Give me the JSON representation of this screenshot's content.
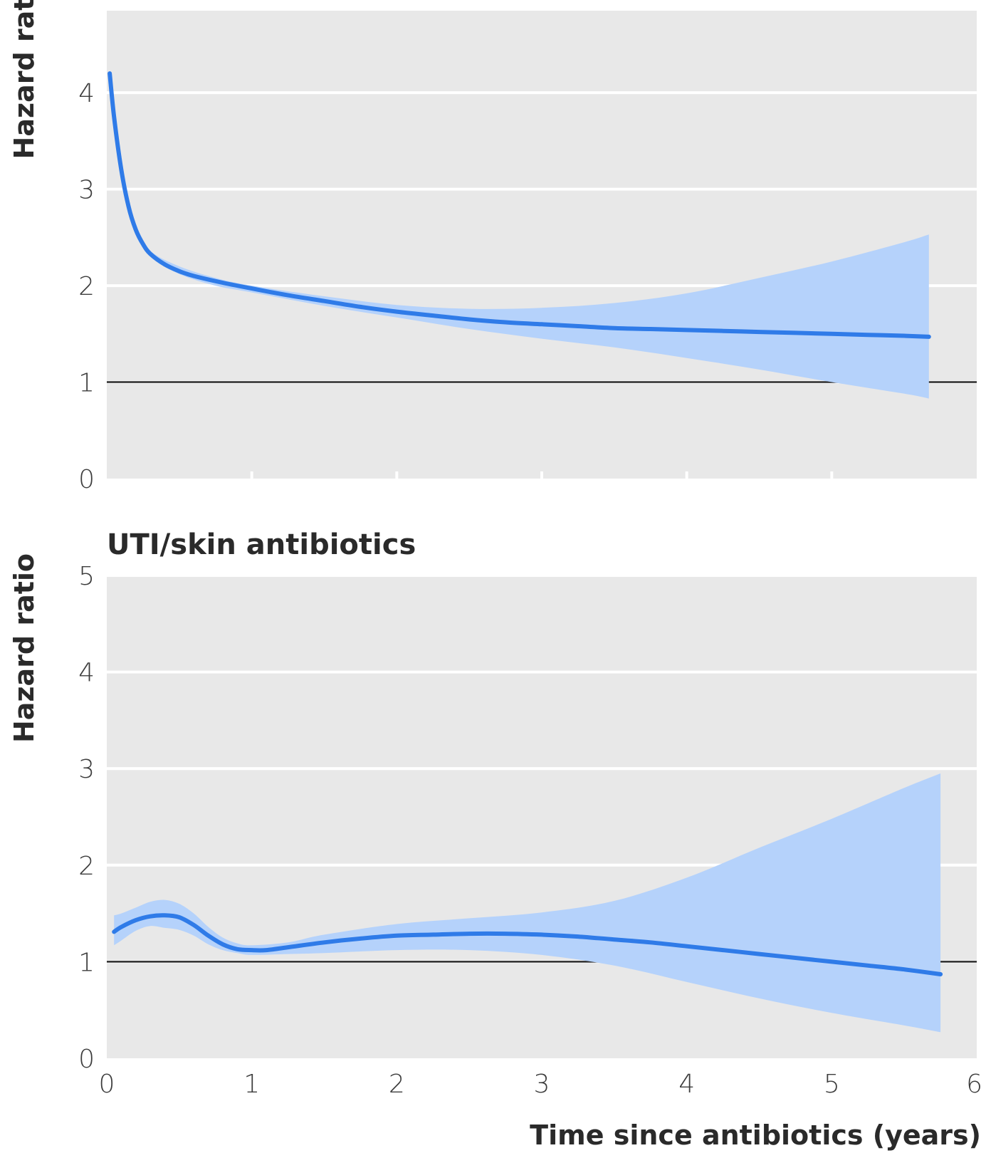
{
  "colors": {
    "panel_bg": "#e8e8e8",
    "gridline": "#ffffff",
    "reference_line": "#2b2b2b",
    "line": "#2f7be8",
    "band": "#b5d2fb"
  },
  "chart_data": [
    {
      "type": "line",
      "title": "",
      "xlabel": "",
      "ylabel": "Hazard rat",
      "xlim": [
        0,
        6
      ],
      "ylim": [
        0,
        4.85
      ],
      "yticks": [
        "0",
        "1",
        "2",
        "3",
        "4"
      ],
      "xticks": [],
      "reference_line_y": 1,
      "grid": true,
      "series": [
        {
          "estimate": {
            "x": [
              0.02,
              0.05,
              0.1,
              0.15,
              0.2,
              0.25,
              0.3,
              0.4,
              0.5,
              0.6,
              0.8,
              1.0,
              1.25,
              1.5,
              1.75,
              2.0,
              2.25,
              2.5,
              2.75,
              3.0,
              3.25,
              3.5,
              3.75,
              4.0,
              4.25,
              4.5,
              4.75,
              5.0,
              5.25,
              5.5,
              5.67
            ],
            "y": [
              4.2,
              3.75,
              3.2,
              2.82,
              2.58,
              2.43,
              2.33,
              2.22,
              2.15,
              2.1,
              2.03,
              1.97,
              1.9,
              1.84,
              1.78,
              1.73,
              1.69,
              1.65,
              1.62,
              1.6,
              1.58,
              1.56,
              1.55,
              1.54,
              1.53,
              1.52,
              1.51,
              1.5,
              1.49,
              1.48,
              1.47
            ]
          },
          "ci_upper": {
            "x": [
              0.2,
              0.3,
              0.5,
              0.75,
              1.0,
              1.5,
              2.0,
              2.5,
              3.0,
              3.5,
              4.0,
              4.5,
              5.0,
              5.5,
              5.67
            ],
            "y": [
              2.6,
              2.36,
              2.2,
              2.08,
              2.0,
              1.89,
              1.8,
              1.76,
              1.77,
              1.82,
              1.92,
              2.08,
              2.25,
              2.45,
              2.53
            ]
          },
          "ci_lower": {
            "x": [
              0.2,
              0.3,
              0.5,
              0.75,
              1.0,
              1.5,
              2.0,
              2.5,
              3.0,
              3.5,
              4.0,
              4.5,
              5.0,
              5.5,
              5.67
            ],
            "y": [
              2.56,
              2.3,
              2.12,
              2.0,
              1.93,
              1.79,
              1.67,
              1.55,
              1.45,
              1.36,
              1.25,
              1.13,
              1.0,
              0.88,
              0.83
            ]
          }
        }
      ]
    },
    {
      "type": "line",
      "title": "UTI/skin antibiotics",
      "xlabel": "Time since antibiotics (years)",
      "ylabel": "Hazard ratio",
      "xlim": [
        0,
        6
      ],
      "ylim": [
        0,
        5
      ],
      "yticks": [
        "0",
        "1",
        "2",
        "3",
        "4",
        "5"
      ],
      "xticks": [
        "0",
        "1",
        "2",
        "3",
        "4",
        "5",
        "6"
      ],
      "reference_line_y": 1,
      "grid": true,
      "series": [
        {
          "estimate": {
            "x": [
              0.05,
              0.1,
              0.2,
              0.3,
              0.4,
              0.5,
              0.6,
              0.7,
              0.8,
              0.9,
              1.0,
              1.1,
              1.25,
              1.5,
              1.75,
              2.0,
              2.25,
              2.5,
              2.75,
              3.0,
              3.25,
              3.5,
              3.75,
              4.0,
              4.25,
              4.5,
              4.75,
              5.0,
              5.25,
              5.5,
              5.75
            ],
            "y": [
              1.31,
              1.36,
              1.43,
              1.47,
              1.48,
              1.46,
              1.38,
              1.27,
              1.18,
              1.13,
              1.12,
              1.12,
              1.15,
              1.2,
              1.24,
              1.27,
              1.28,
              1.29,
              1.29,
              1.28,
              1.26,
              1.23,
              1.2,
              1.16,
              1.12,
              1.08,
              1.04,
              1.0,
              0.96,
              0.92,
              0.87
            ]
          },
          "ci_upper": {
            "x": [
              0.05,
              0.1,
              0.2,
              0.3,
              0.4,
              0.5,
              0.6,
              0.7,
              0.8,
              0.9,
              1.0,
              1.25,
              1.5,
              2.0,
              2.5,
              3.0,
              3.5,
              4.0,
              4.5,
              5.0,
              5.5,
              5.75
            ],
            "y": [
              1.48,
              1.5,
              1.56,
              1.62,
              1.64,
              1.6,
              1.5,
              1.36,
              1.25,
              1.19,
              1.17,
              1.2,
              1.28,
              1.39,
              1.45,
              1.51,
              1.63,
              1.87,
              2.18,
              2.48,
              2.8,
              2.95
            ]
          },
          "ci_lower": {
            "x": [
              0.05,
              0.1,
              0.2,
              0.3,
              0.4,
              0.5,
              0.6,
              0.7,
              0.8,
              0.9,
              1.0,
              1.25,
              1.5,
              2.0,
              2.5,
              3.0,
              3.5,
              4.0,
              4.5,
              5.0,
              5.5,
              5.75
            ],
            "y": [
              1.17,
              1.22,
              1.32,
              1.37,
              1.35,
              1.33,
              1.27,
              1.18,
              1.12,
              1.09,
              1.07,
              1.08,
              1.09,
              1.12,
              1.12,
              1.07,
              0.96,
              0.79,
              0.62,
              0.47,
              0.34,
              0.27
            ]
          }
        }
      ]
    }
  ]
}
